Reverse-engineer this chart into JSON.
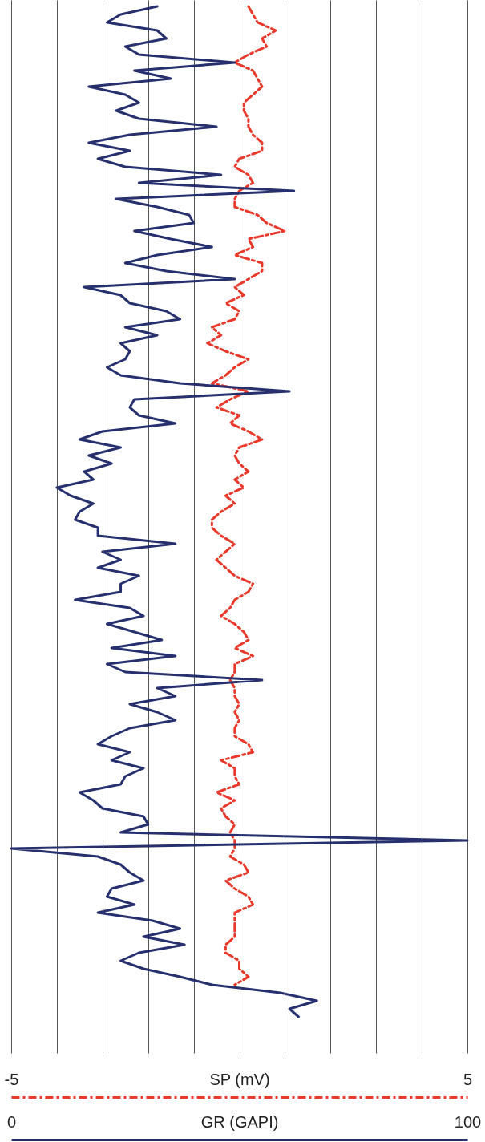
{
  "chart_data": {
    "type": "line",
    "orientation": "horizontal",
    "xlabel": "SP (mV)",
    "x2label": "GR (GAPI)",
    "xlim": [
      -5,
      5
    ],
    "xticks": [
      -5,
      {
        "value": -4,
        "label": null
      },
      {
        "value": -3,
        "label": null
      },
      {
        "value": -2,
        "label": null
      },
      {
        "value": -1,
        "label": null
      },
      {
        "value": 0,
        "label": null
      },
      {
        "value": 1,
        "label": null
      },
      {
        "value": 2,
        "label": null
      },
      {
        "value": 3,
        "label": null
      },
      {
        "value": 4,
        "label": null
      },
      5
    ],
    "x2lim": [
      0,
      100
    ],
    "x2ticks": [
      0,
      100
    ],
    "grid": true,
    "tick_labels": "x",
    "categories": [
      null,
      null,
      null,
      null,
      null,
      null,
      null,
      null,
      null,
      null,
      null,
      null,
      null,
      null,
      null,
      null,
      null,
      null,
      null,
      null,
      null,
      null,
      null,
      null,
      null,
      null,
      null,
      null,
      null,
      null,
      null,
      null,
      null,
      null,
      null,
      null,
      null,
      null,
      null,
      null,
      null,
      null,
      null,
      null,
      null,
      null,
      null,
      null,
      null,
      null,
      null,
      null,
      null,
      null,
      null,
      null,
      null,
      null,
      null,
      null,
      null,
      null,
      null,
      null,
      null,
      null,
      null,
      null,
      null,
      null,
      null,
      null,
      null,
      null,
      null,
      null,
      null,
      null,
      null,
      null,
      null,
      null,
      null,
      null,
      null,
      null,
      null,
      null,
      null,
      null,
      null,
      null,
      null,
      null,
      null,
      null,
      null,
      null,
      null,
      null,
      null,
      null,
      null,
      null,
      null,
      null,
      null,
      null,
      null,
      null,
      null,
      null,
      null,
      null,
      null,
      null,
      null,
      null,
      null,
      null,
      null,
      null,
      null,
      null,
      null,
      null,
      null
    ],
    "series": [
      {
        "color": "#e8392b",
        "line_style": "dashed",
        "values": [
          0.2,
          0.3,
          0.4,
          0.8,
          0.5,
          0.6,
          0.2,
          -0.1,
          0.3,
          0.4,
          0.5,
          0.3,
          0.1,
          0.1,
          0.2,
          0.2,
          0.3,
          0.5,
          0.5,
          0.0,
          -0.1,
          0.2,
          0.3,
          0.0,
          -0.1,
          -0.1,
          0.4,
          0.6,
          1.0,
          0.2,
          0.3,
          -0.1,
          0.5,
          0.5,
          0.2,
          -0.1,
          0.1,
          -0.3,
          0.0,
          -0.1,
          -0.6,
          -0.4,
          -0.7,
          -0.3,
          0.2,
          -0.1,
          -0.3,
          -0.6,
          0.2,
          -0.2,
          -0.5,
          0.0,
          -0.2,
          0.2,
          0.5,
          0.0,
          -0.1,
          0.0,
          0.2,
          -0.1,
          0.1,
          -0.3,
          -0.1,
          -0.4,
          -0.6,
          -0.6,
          -0.4,
          -0.1,
          -0.3,
          -0.5,
          -0.3,
          -0.1,
          0.3,
          0.2,
          -0.1,
          -0.2,
          -0.4,
          -0.1,
          0.1,
          0.2,
          -0.1,
          0.3,
          -0.1,
          -0.1,
          -0.2,
          -0.1,
          -0.1,
          0.0,
          -0.1,
          0.0,
          -0.1,
          -0.1,
          0.2,
          0.3,
          -0.4,
          -0.1,
          -0.1,
          0.0,
          -0.5,
          -0.1,
          -0.4,
          -0.3,
          -0.1,
          -0.2,
          -0.1,
          -0.1,
          -0.2,
          0.1,
          0.2,
          -0.3,
          -0.1,
          0.2,
          0.3,
          -0.1,
          -0.1,
          -0.1,
          -0.1,
          -0.3,
          -0.3,
          0.0,
          0.0,
          0.2,
          -0.1,
          null,
          null,
          null,
          null
        ]
      },
      {
        "color": "#26306e",
        "axis": "x2",
        "values": [
          32,
          24,
          21,
          32,
          34,
          25,
          28,
          49,
          27,
          35,
          17,
          25,
          28,
          23,
          28,
          45,
          26,
          17,
          26,
          19,
          25,
          46,
          28,
          62,
          23,
          32,
          39,
          40,
          27,
          35,
          44,
          32,
          25,
          34,
          49,
          16,
          24,
          26,
          34,
          37,
          25,
          32,
          24,
          26,
          25,
          21,
          24,
          37,
          61,
          27,
          26,
          28,
          36,
          20,
          15,
          24,
          17,
          22,
          16,
          18,
          10,
          13,
          18,
          15,
          14,
          19,
          19,
          36,
          20,
          24,
          19,
          28,
          24,
          24,
          14,
          26,
          29,
          21,
          27,
          33,
          22,
          36,
          21,
          25,
          55,
          32,
          36,
          26,
          32,
          36,
          26,
          22,
          19,
          26,
          22,
          29,
          25,
          24,
          15,
          18,
          20,
          29,
          30,
          24,
          100,
          0,
          19,
          24,
          26,
          29,
          22,
          21,
          27,
          19,
          31,
          37,
          29,
          38,
          28,
          24,
          29,
          37,
          44,
          59,
          67,
          61,
          63
        ]
      }
    ]
  }
}
